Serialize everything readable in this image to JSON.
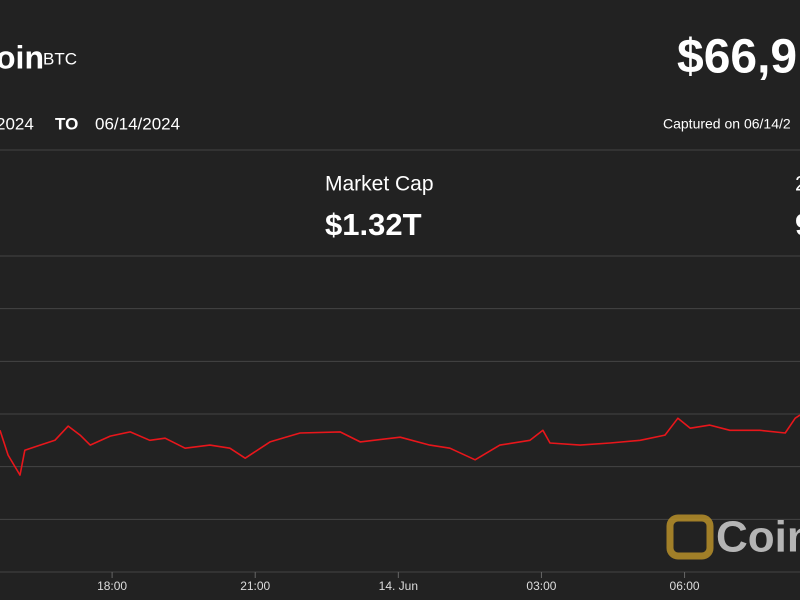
{
  "header": {
    "name": "oin",
    "symbol": "BTC",
    "price": "$66,9",
    "from": "2024",
    "to_label": "TO",
    "to": "06/14/2024",
    "captured": "Captured on 06/14/2"
  },
  "stats": [
    {
      "label": "Market Cap",
      "value": "$1.32T"
    },
    {
      "label": "2",
      "value": "9"
    }
  ],
  "watermark": "Coin",
  "chart_data": {
    "type": "line",
    "x": [
      15.65,
      15.82,
      16.07,
      16.17,
      16.49,
      16.8,
      17.08,
      17.33,
      17.54,
      17.96,
      18.38,
      18.79,
      19.11,
      19.53,
      20.05,
      20.47,
      20.79,
      21.31,
      21.94,
      22.78,
      23.2,
      24.04,
      24.66,
      25.08,
      25.61,
      26.13,
      26.76,
      27.03,
      27.18,
      27.81,
      28.44,
      29.07,
      29.59,
      29.86,
      30.12,
      30.53,
      30.95,
      31.58,
      32.11,
      32.32,
      32.42
    ],
    "series": [
      {
        "color": "#e8161b",
        "values": [
          2.69,
          2.22,
          1.84,
          2.31,
          2.41,
          2.5,
          2.77,
          2.6,
          2.41,
          2.58,
          2.66,
          2.5,
          2.54,
          2.35,
          2.41,
          2.35,
          2.16,
          2.47,
          2.64,
          2.66,
          2.47,
          2.56,
          2.41,
          2.35,
          2.13,
          2.41,
          2.5,
          2.69,
          2.45,
          2.41,
          2.45,
          2.5,
          2.6,
          2.92,
          2.73,
          2.79,
          2.69,
          2.69,
          2.64,
          2.92,
          2.98
        ]
      }
    ],
    "xlim": [
      15.65,
      32.42
    ],
    "xticks": [
      {
        "value": 18,
        "label": "18:00"
      },
      {
        "value": 21,
        "label": "21:00"
      },
      {
        "value": 24,
        "label": "14. Jun"
      },
      {
        "value": 27,
        "label": "03:00"
      },
      {
        "value": 30,
        "label": "06:00"
      }
    ],
    "ylim": [
      0,
      6
    ],
    "yticks": [
      1,
      2,
      3,
      4,
      5
    ],
    "grid": true
  }
}
